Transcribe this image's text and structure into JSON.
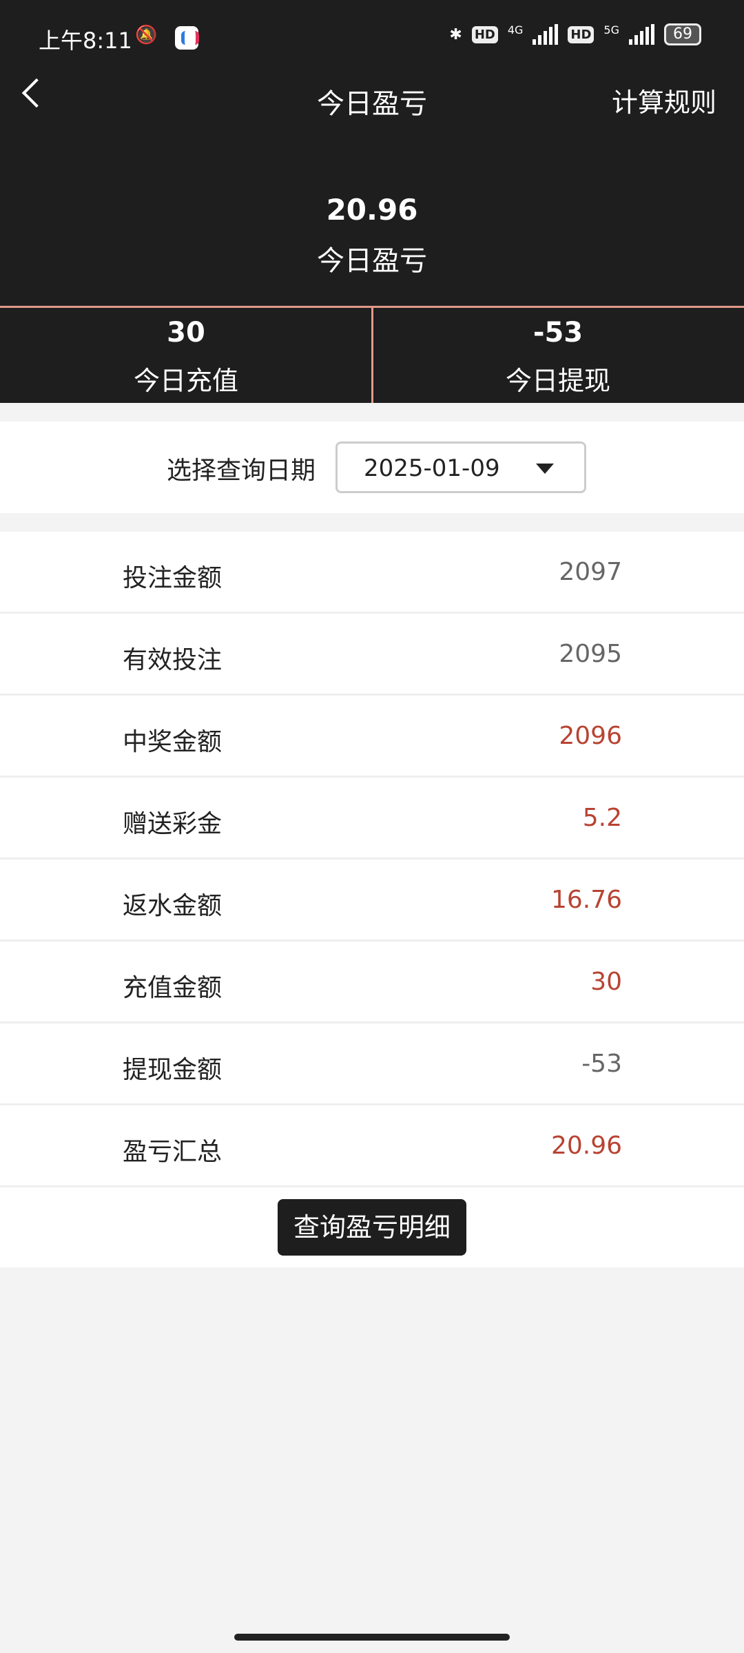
{
  "status_bar": {
    "time": "上午8:11",
    "net1": "4G",
    "net2": "5G",
    "hd": "HD",
    "battery": "69",
    "icons": [
      "mute-bell-icon",
      "app-icon",
      "bluetooth-icon",
      "signal-icon",
      "battery-icon"
    ]
  },
  "header": {
    "title": "今日盈亏",
    "rules_label": "计算规则",
    "back_icon": "chevron-left-icon"
  },
  "summary": {
    "value": "20.96",
    "label": "今日盈亏"
  },
  "stats": [
    {
      "value": "30",
      "label": "今日充值"
    },
    {
      "value": "-53",
      "label": "今日提现"
    }
  ],
  "date_filter": {
    "label": "选择查询日期",
    "value": "2025-01-09"
  },
  "rows": [
    {
      "label": "投注金额",
      "value": "2097",
      "color": "#666666"
    },
    {
      "label": "有效投注",
      "value": "2095",
      "color": "#666666"
    },
    {
      "label": "中奖金额",
      "value": "2096",
      "color": "#b84332"
    },
    {
      "label": "赠送彩金",
      "value": "5.2",
      "color": "#b84332"
    },
    {
      "label": "返水金额",
      "value": "16.76",
      "color": "#b84332"
    },
    {
      "label": "充值金额",
      "value": "30",
      "color": "#b84332"
    },
    {
      "label": "提现金额",
      "value": "-53",
      "color": "#666666"
    },
    {
      "label": "盈亏汇总",
      "value": "20.96",
      "color": "#b84332"
    }
  ],
  "detail_button": "查询盈亏明细",
  "colors": {
    "header_bg": "#1e1e1e",
    "accent_line": "#e39a8a",
    "positive": "#b84332"
  }
}
